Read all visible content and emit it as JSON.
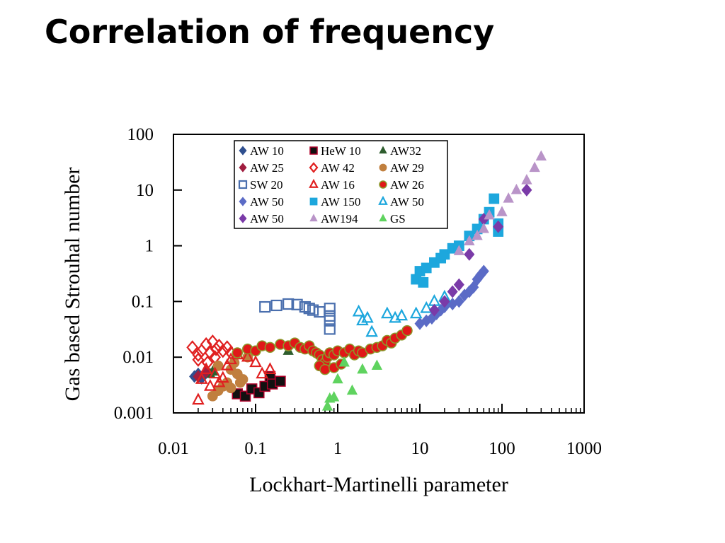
{
  "slide": {
    "title": "Correlation of frequency"
  },
  "chart_data": {
    "type": "scatter",
    "title": "",
    "xlabel": "Lockhart-Martinelli parameter",
    "ylabel": "Gas based Strouhal number",
    "xscale": "log",
    "yscale": "log",
    "xlim": [
      0.01,
      1000
    ],
    "ylim": [
      0.001,
      100
    ],
    "xticks": [
      "0.01",
      "0.1",
      "1",
      "10",
      "100",
      "1000"
    ],
    "yticks": [
      "0.001",
      "0.01",
      "0.1",
      "1",
      "10",
      "100"
    ],
    "grid": false,
    "legend_position": "top-left",
    "series": [
      {
        "name": "AW 10",
        "marker": "diamond-filled",
        "color": "#2f4f8f",
        "x": [
          0.018,
          0.02,
          0.022
        ],
        "y": [
          0.0045,
          0.005,
          0.0042
        ]
      },
      {
        "name": "HeW 10",
        "marker": "square-filled",
        "color": "#111111",
        "stroke": "#b0002a",
        "x": [
          0.06,
          0.075,
          0.09,
          0.11,
          0.13,
          0.15,
          0.16,
          0.2
        ],
        "y": [
          0.0022,
          0.002,
          0.0027,
          0.0023,
          0.003,
          0.0045,
          0.0033,
          0.0037
        ]
      },
      {
        "name": "AW32",
        "marker": "triangle-filled",
        "color": "#2e5d2e",
        "x": [
          0.028,
          0.03,
          0.25
        ],
        "y": [
          0.005,
          0.0055,
          0.013
        ]
      },
      {
        "name": "AW 25",
        "marker": "diamond-filled",
        "color": "#a01d3f",
        "x": [
          0.02,
          0.025
        ],
        "y": [
          0.0045,
          0.0055
        ]
      },
      {
        "name": "AW 42",
        "marker": "diamond-open",
        "color": "#e02020",
        "x": [
          0.017,
          0.02,
          0.022,
          0.025,
          0.028,
          0.03,
          0.033,
          0.036,
          0.04,
          0.045,
          0.05,
          0.02,
          0.026,
          0.032
        ],
        "y": [
          0.015,
          0.011,
          0.013,
          0.017,
          0.012,
          0.019,
          0.014,
          0.016,
          0.013,
          0.015,
          0.012,
          0.009,
          0.008,
          0.01
        ]
      },
      {
        "name": "AW 29",
        "marker": "circle-filled",
        "color": "#c07f3e",
        "x": [
          0.03,
          0.035,
          0.04,
          0.045,
          0.05,
          0.055,
          0.06,
          0.065,
          0.07,
          0.08,
          0.035,
          0.05
        ],
        "y": [
          0.002,
          0.0025,
          0.003,
          0.0035,
          0.006,
          0.008,
          0.005,
          0.0035,
          0.004,
          0.01,
          0.007,
          0.0028
        ]
      },
      {
        "name": "SW 20",
        "marker": "square-open",
        "color": "#4a6fae",
        "x": [
          0.13,
          0.18,
          0.25,
          0.32,
          0.4,
          0.45,
          0.5,
          0.6,
          0.8,
          0.8,
          0.8,
          0.8
        ],
        "y": [
          0.08,
          0.085,
          0.09,
          0.088,
          0.08,
          0.075,
          0.07,
          0.065,
          0.075,
          0.055,
          0.045,
          0.032
        ]
      },
      {
        "name": "AW 16",
        "marker": "triangle-open",
        "color": "#e02020",
        "x": [
          0.02,
          0.022,
          0.025,
          0.028,
          0.032,
          0.036,
          0.04,
          0.045,
          0.05,
          0.06,
          0.08,
          0.1,
          0.12,
          0.15
        ],
        "y": [
          0.0017,
          0.004,
          0.006,
          0.003,
          0.005,
          0.0035,
          0.0042,
          0.007,
          0.009,
          0.011,
          0.01,
          0.008,
          0.005,
          0.006
        ]
      },
      {
        "name": "AW 26",
        "marker": "circle-filled",
        "color": "#e01818",
        "stroke": "#8a9a2a",
        "x": [
          0.06,
          0.08,
          0.1,
          0.12,
          0.15,
          0.2,
          0.25,
          0.3,
          0.35,
          0.4,
          0.45,
          0.5,
          0.55,
          0.6,
          0.65,
          0.7,
          0.75,
          0.8,
          0.9,
          1.0,
          1.2,
          1.4,
          1.6,
          1.8,
          2.0,
          2.5,
          3.0,
          3.5,
          4.0,
          4.5,
          5.0,
          6.0,
          7.0,
          0.6,
          0.7,
          0.9,
          1.1
        ],
        "y": [
          0.012,
          0.014,
          0.013,
          0.016,
          0.015,
          0.017,
          0.016,
          0.018,
          0.015,
          0.014,
          0.016,
          0.013,
          0.012,
          0.011,
          0.009,
          0.008,
          0.01,
          0.012,
          0.011,
          0.013,
          0.012,
          0.014,
          0.011,
          0.013,
          0.012,
          0.014,
          0.015,
          0.016,
          0.02,
          0.018,
          0.022,
          0.025,
          0.03,
          0.007,
          0.006,
          0.0065,
          0.0075
        ]
      },
      {
        "name": "AW 50",
        "marker": "diamond-filled",
        "color": "#5b6bc6",
        "x": [
          10,
          12,
          14,
          16,
          18,
          20,
          25,
          30,
          35,
          40,
          45,
          50,
          55,
          60
        ],
        "y": [
          0.04,
          0.045,
          0.05,
          0.06,
          0.07,
          0.08,
          0.09,
          0.1,
          0.13,
          0.15,
          0.18,
          0.25,
          0.3,
          0.35
        ]
      },
      {
        "name": "AW 150",
        "marker": "square-filled",
        "color": "#1da7dd",
        "x": [
          9,
          10,
          11,
          12,
          15,
          18,
          20,
          25,
          30,
          40,
          50,
          60,
          70,
          80,
          90,
          90
        ],
        "y": [
          0.25,
          0.35,
          0.22,
          0.4,
          0.5,
          0.6,
          0.7,
          0.9,
          1.0,
          1.5,
          2.0,
          3.0,
          4.0,
          7.0,
          2.5,
          1.8
        ]
      },
      {
        "name": "AW 50",
        "marker": "triangle-open",
        "color": "#1da7dd",
        "x": [
          1.8,
          2.0,
          2.3,
          2.6,
          4.0,
          5.0,
          6.0,
          9.0,
          12,
          15,
          20
        ],
        "y": [
          0.065,
          0.045,
          0.05,
          0.028,
          0.06,
          0.05,
          0.055,
          0.06,
          0.075,
          0.1,
          0.12
        ]
      },
      {
        "name": "AW 50",
        "marker": "diamond-filled",
        "color": "#7a3aa8",
        "x": [
          15,
          20,
          25,
          30,
          40,
          60,
          90,
          200
        ],
        "y": [
          0.07,
          0.1,
          0.15,
          0.2,
          0.7,
          3.0,
          2.2,
          10
        ]
      },
      {
        "name": "AW194",
        "marker": "triangle-filled",
        "color": "#b994c8",
        "x": [
          30,
          40,
          50,
          60,
          70,
          100,
          120,
          150,
          200,
          250,
          300
        ],
        "y": [
          0.8,
          1.2,
          1.5,
          2.0,
          3.5,
          4.0,
          7.0,
          10,
          15,
          25,
          40
        ]
      },
      {
        "name": "GS",
        "marker": "triangle-filled",
        "color": "#5fd35f",
        "x": [
          0.75,
          0.8,
          0.9,
          1.0,
          1.2,
          1.5,
          2.0,
          3.0
        ],
        "y": [
          0.0013,
          0.0018,
          0.0019,
          0.004,
          0.008,
          0.0025,
          0.006,
          0.007
        ]
      }
    ]
  }
}
